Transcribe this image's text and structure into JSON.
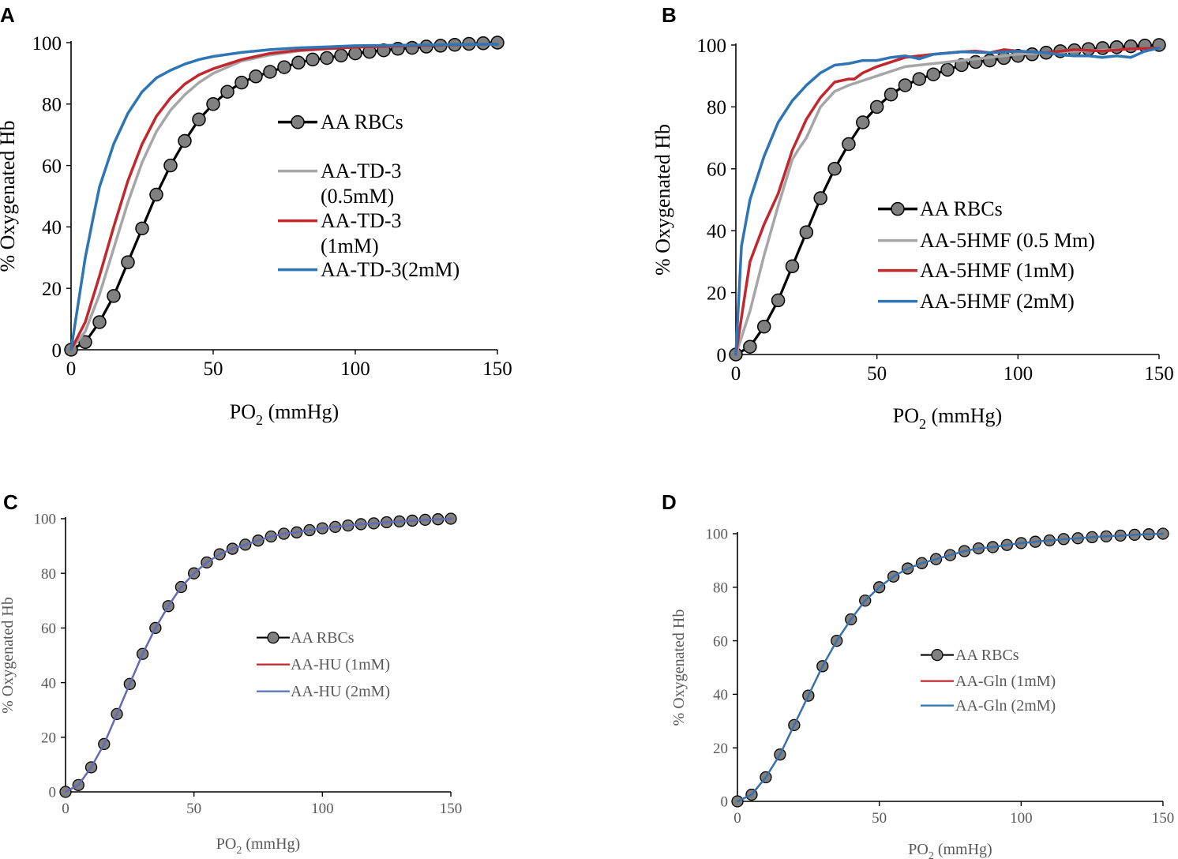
{
  "figure": {
    "colors": {
      "aa_rbcs_line": "#000000",
      "aa_rbcs_marker_fill": "#808080",
      "gray": "#a6a6a6",
      "red": "#c0282d",
      "blue": "#2e75b6",
      "blue_c": "#5b6fbf",
      "axis": "#000000",
      "text_small": "#595959"
    }
  },
  "chart_data": [
    {
      "panel": "A",
      "type": "line",
      "xlabel": "PO",
      "xlabel_sub": "2",
      "xlabel_suffix": " (mmHg)",
      "ylabel": "% Oxygenated Hb",
      "xlim": [
        0,
        150
      ],
      "ylim": [
        0,
        100
      ],
      "xticks": [
        "0",
        "50",
        "100",
        "150"
      ],
      "yticks": [
        "0",
        "20",
        "40",
        "60",
        "80",
        "100"
      ],
      "legend_position": "center",
      "series": [
        {
          "name": "AA RBCs",
          "color_key": "aa_rbcs_line",
          "markers": true,
          "legend_lines": [
            "AA RBCs"
          ],
          "x": [
            0,
            5,
            10,
            15,
            20,
            25,
            30,
            35,
            40,
            45,
            50,
            55,
            60,
            65,
            70,
            75,
            80,
            85,
            90,
            95,
            100,
            105,
            110,
            115,
            120,
            125,
            130,
            135,
            140,
            145,
            150
          ],
          "y": [
            0,
            2.5,
            9,
            17.5,
            28.5,
            39.5,
            50.5,
            60,
            68,
            75,
            80,
            84,
            87,
            89,
            90.5,
            92,
            93.5,
            94.5,
            95,
            95.8,
            96.5,
            97,
            97.5,
            98,
            98.3,
            98.7,
            99,
            99.3,
            99.6,
            99.8,
            100
          ]
        },
        {
          "name": "AA-TD-3 (0.5mM)",
          "color_key": "gray",
          "markers": false,
          "legend_lines": [
            "AA-TD-3",
            "(0.5mM)"
          ],
          "x": [
            0,
            5,
            10,
            15,
            20,
            25,
            30,
            35,
            40,
            45,
            50,
            60,
            70,
            80,
            90,
            100,
            120,
            150
          ],
          "y": [
            0,
            6,
            18,
            33,
            48,
            61,
            71,
            78,
            83,
            87,
            90,
            94,
            96,
            97.3,
            98,
            98.5,
            99,
            99.5
          ]
        },
        {
          "name": "AA-TD-3 (1mM)",
          "color_key": "red",
          "markers": false,
          "legend_lines": [
            "AA-TD-3",
            "(1mM)"
          ],
          "x": [
            0,
            5,
            10,
            15,
            20,
            25,
            30,
            35,
            40,
            45,
            50,
            60,
            70,
            80,
            90,
            100,
            120,
            150
          ],
          "y": [
            0,
            9,
            24,
            40,
            55,
            67,
            76,
            82,
            86.5,
            89.5,
            91.5,
            94.5,
            96.5,
            97.5,
            98,
            98.5,
            99,
            99.5
          ]
        },
        {
          "name": "AA-TD-3(2mM)",
          "color_key": "blue",
          "markers": false,
          "legend_lines": [
            "AA-TD-3(2mM)"
          ],
          "x": [
            0,
            3,
            5,
            8,
            10,
            15,
            20,
            25,
            30,
            35,
            40,
            45,
            50,
            60,
            70,
            80,
            90,
            100,
            120,
            150
          ],
          "y": [
            0,
            18,
            30,
            44,
            53,
            67,
            77,
            84,
            88.5,
            91,
            93,
            94.5,
            95.5,
            96.8,
            97.7,
            98.3,
            98.6,
            99,
            99.2,
            99.5
          ]
        }
      ]
    },
    {
      "panel": "B",
      "type": "line",
      "xlabel": "PO",
      "xlabel_sub": "2",
      "xlabel_suffix": " (mmHg)",
      "ylabel": "% Oxygenated Hb",
      "xlim": [
        0,
        150
      ],
      "ylim": [
        0,
        100
      ],
      "xticks": [
        "0",
        "50",
        "100",
        "150"
      ],
      "yticks": [
        "0",
        "20",
        "40",
        "60",
        "80",
        "100"
      ],
      "legend_position": "center-right",
      "series": [
        {
          "name": "AA RBCs",
          "color_key": "aa_rbcs_line",
          "markers": true,
          "legend_lines": [
            "AA RBCs"
          ],
          "x": [
            0,
            5,
            10,
            15,
            20,
            25,
            30,
            35,
            40,
            45,
            50,
            55,
            60,
            65,
            70,
            75,
            80,
            85,
            90,
            95,
            100,
            105,
            110,
            115,
            120,
            125,
            130,
            135,
            140,
            145,
            150
          ],
          "y": [
            0,
            2.5,
            9,
            17.5,
            28.5,
            39.5,
            50.5,
            60,
            68,
            75,
            80,
            84,
            87,
            89,
            90.5,
            92,
            93.5,
            94.5,
            95,
            95.8,
            96.5,
            97,
            97.5,
            98,
            98.3,
            98.7,
            99,
            99.3,
            99.6,
            99.8,
            100
          ]
        },
        {
          "name": "AA-5HMF (0.5 Mm)",
          "color_key": "gray",
          "markers": false,
          "legend_lines": [
            "AA-5HMF (0.5 Mm)"
          ],
          "x": [
            0,
            5,
            10,
            15,
            20,
            22,
            25,
            30,
            35,
            40,
            45,
            50,
            60,
            70,
            80,
            90,
            100,
            120,
            150
          ],
          "y": [
            0,
            14,
            32,
            48,
            63,
            66,
            70,
            80,
            85,
            87,
            88.5,
            90,
            93,
            94,
            95,
            96,
            97,
            98,
            99
          ]
        },
        {
          "name": "AA-5HMF (1mM)",
          "color_key": "red",
          "markers": false,
          "legend_lines": [
            "AA-5HMF (1mM)"
          ],
          "x": [
            0,
            3,
            5,
            10,
            15,
            20,
            25,
            30,
            35,
            40,
            42,
            45,
            50,
            55,
            60,
            70,
            80,
            85,
            90,
            95,
            100,
            110,
            120,
            130,
            140,
            150
          ],
          "y": [
            0,
            18,
            30,
            42,
            52,
            66,
            76,
            83,
            88,
            89,
            89,
            91,
            93,
            94.5,
            96,
            97,
            97.8,
            98,
            97.5,
            98.5,
            98,
            97.5,
            98.5,
            98,
            98.8,
            99
          ]
        },
        {
          "name": "AA-5HMF (2mM)",
          "color_key": "blue",
          "markers": false,
          "legend_lines": [
            "AA-5HMF (2mM)"
          ],
          "x": [
            0,
            2,
            5,
            10,
            15,
            20,
            25,
            30,
            35,
            40,
            45,
            50,
            55,
            60,
            65,
            70,
            80,
            90,
            100,
            110,
            115,
            120,
            125,
            130,
            135,
            140,
            145,
            150
          ],
          "y": [
            0,
            35,
            50,
            64,
            75,
            82,
            87,
            91,
            93.5,
            94,
            95,
            95,
            96,
            96.5,
            95.5,
            97,
            97.8,
            97.5,
            98,
            97.5,
            96.8,
            96.5,
            96.5,
            96,
            96.5,
            96,
            98,
            99
          ]
        }
      ]
    },
    {
      "panel": "C",
      "type": "line",
      "xlabel": "PO",
      "xlabel_sub": "2",
      "xlabel_suffix": " (mmHg)",
      "ylabel": "% Oxygenated Hb",
      "xlim": [
        0,
        150
      ],
      "ylim": [
        0,
        100
      ],
      "xticks": [
        "0",
        "50",
        "100",
        "150"
      ],
      "yticks": [
        "0",
        "20",
        "40",
        "60",
        "80",
        "100"
      ],
      "legend_position": "center-right",
      "series": [
        {
          "name": "AA RBCs",
          "color_key": "aa_rbcs_line",
          "markers": true,
          "legend_lines": [
            "AA RBCs"
          ],
          "x": [
            0,
            5,
            10,
            15,
            20,
            25,
            30,
            35,
            40,
            45,
            50,
            55,
            60,
            65,
            70,
            75,
            80,
            85,
            90,
            95,
            100,
            105,
            110,
            115,
            120,
            125,
            130,
            135,
            140,
            145,
            150
          ],
          "y": [
            0,
            2.5,
            9,
            17.5,
            28.5,
            39.5,
            50.5,
            60,
            68,
            75,
            80,
            84,
            87,
            89,
            90.5,
            92,
            93.5,
            94.5,
            95,
            95.8,
            96.5,
            97,
            97.5,
            98,
            98.3,
            98.7,
            99,
            99.3,
            99.6,
            99.8,
            100
          ]
        },
        {
          "name": "AA-HU (1mM)",
          "color_key": "red",
          "markers": false,
          "legend_lines": [
            "AA-HU (1mM)"
          ],
          "x": [
            0,
            5,
            10,
            15,
            20,
            25,
            30,
            35,
            40,
            45,
            50,
            55,
            60,
            65,
            70,
            75,
            80,
            85,
            90,
            95,
            100,
            105,
            110,
            115,
            120,
            125,
            130,
            135,
            140,
            145,
            150
          ],
          "y": [
            0,
            2.5,
            9,
            17.5,
            28.5,
            39.5,
            50.5,
            60,
            68,
            75,
            80,
            84,
            87,
            89,
            90.5,
            92,
            93.5,
            94.5,
            95,
            95.8,
            96.5,
            97,
            97.5,
            98,
            98.3,
            98.7,
            99,
            99.3,
            99.6,
            99.8,
            100
          ]
        },
        {
          "name": "AA-HU (2mM)",
          "color_key": "blue_c",
          "markers": false,
          "legend_lines": [
            "AA-HU (2mM)"
          ],
          "x": [
            0,
            5,
            10,
            15,
            20,
            25,
            30,
            35,
            40,
            45,
            50,
            55,
            60,
            65,
            70,
            75,
            80,
            85,
            90,
            95,
            100,
            105,
            110,
            115,
            120,
            125,
            130,
            135,
            140,
            145,
            150
          ],
          "y": [
            0,
            2.5,
            9,
            17.5,
            28.5,
            39.5,
            50.5,
            60,
            68,
            75,
            80,
            84,
            87,
            89,
            90.5,
            92,
            93.5,
            94.5,
            95,
            95.8,
            96.5,
            97,
            97.5,
            98,
            98.3,
            98.7,
            99,
            99.3,
            99.6,
            99.8,
            100
          ]
        }
      ]
    },
    {
      "panel": "D",
      "type": "line",
      "xlabel": "PO",
      "xlabel_sub": "2",
      "xlabel_suffix": " (mmHg)",
      "ylabel": "% Oxygenated Hb",
      "xlim": [
        0,
        150
      ],
      "ylim": [
        0,
        100
      ],
      "xticks": [
        "0",
        "50",
        "100",
        "150"
      ],
      "yticks": [
        "0",
        "20",
        "40",
        "60",
        "80",
        "100"
      ],
      "legend_position": "center-right",
      "series": [
        {
          "name": "AA RBCs",
          "color_key": "aa_rbcs_line",
          "markers": true,
          "legend_lines": [
            "AA RBCs"
          ],
          "x": [
            0,
            5,
            10,
            15,
            20,
            25,
            30,
            35,
            40,
            45,
            50,
            55,
            60,
            65,
            70,
            75,
            80,
            85,
            90,
            95,
            100,
            105,
            110,
            115,
            120,
            125,
            130,
            135,
            140,
            145,
            150
          ],
          "y": [
            0,
            2.5,
            9,
            17.5,
            28.5,
            39.5,
            50.5,
            60,
            68,
            75,
            80,
            84,
            87,
            89,
            90.5,
            92,
            93.5,
            94.5,
            95,
            95.8,
            96.5,
            97,
            97.5,
            98,
            98.3,
            98.7,
            99,
            99.3,
            99.6,
            99.8,
            100
          ]
        },
        {
          "name": "AA-Gln (1mM)",
          "color_key": "red",
          "markers": false,
          "legend_lines": [
            "AA-Gln (1mM)"
          ],
          "x": [
            0,
            5,
            10,
            15,
            20,
            25,
            30,
            35,
            40,
            45,
            50,
            55,
            60,
            65,
            70,
            75,
            80,
            85,
            90,
            95,
            100,
            105,
            110,
            115,
            120,
            125,
            130,
            135,
            140,
            145,
            150
          ],
          "y": [
            0,
            2.5,
            9,
            17.5,
            28.5,
            39.5,
            50.5,
            60,
            68,
            75,
            80,
            84,
            87,
            89,
            90.5,
            92,
            93.5,
            94.5,
            95,
            95.8,
            96.5,
            97,
            97.5,
            98,
            98.3,
            98.7,
            99,
            99.3,
            99.6,
            99.8,
            100
          ]
        },
        {
          "name": "AA-Gln (2mM)",
          "color_key": "blue",
          "markers": false,
          "legend_lines": [
            "AA-Gln (2mM)"
          ],
          "x": [
            0,
            5,
            10,
            15,
            20,
            25,
            30,
            35,
            40,
            45,
            50,
            55,
            60,
            65,
            70,
            75,
            80,
            85,
            90,
            95,
            100,
            105,
            110,
            115,
            120,
            125,
            130,
            135,
            140,
            145,
            150
          ],
          "y": [
            0,
            2.5,
            9,
            17.5,
            28.5,
            39.5,
            50.5,
            60,
            68,
            75,
            80,
            84,
            87,
            89,
            90.5,
            92,
            93.5,
            94.5,
            95,
            95.8,
            96.5,
            97,
            97.5,
            98,
            98.3,
            98.7,
            99,
            99.3,
            99.6,
            99.8,
            100
          ]
        }
      ]
    }
  ]
}
